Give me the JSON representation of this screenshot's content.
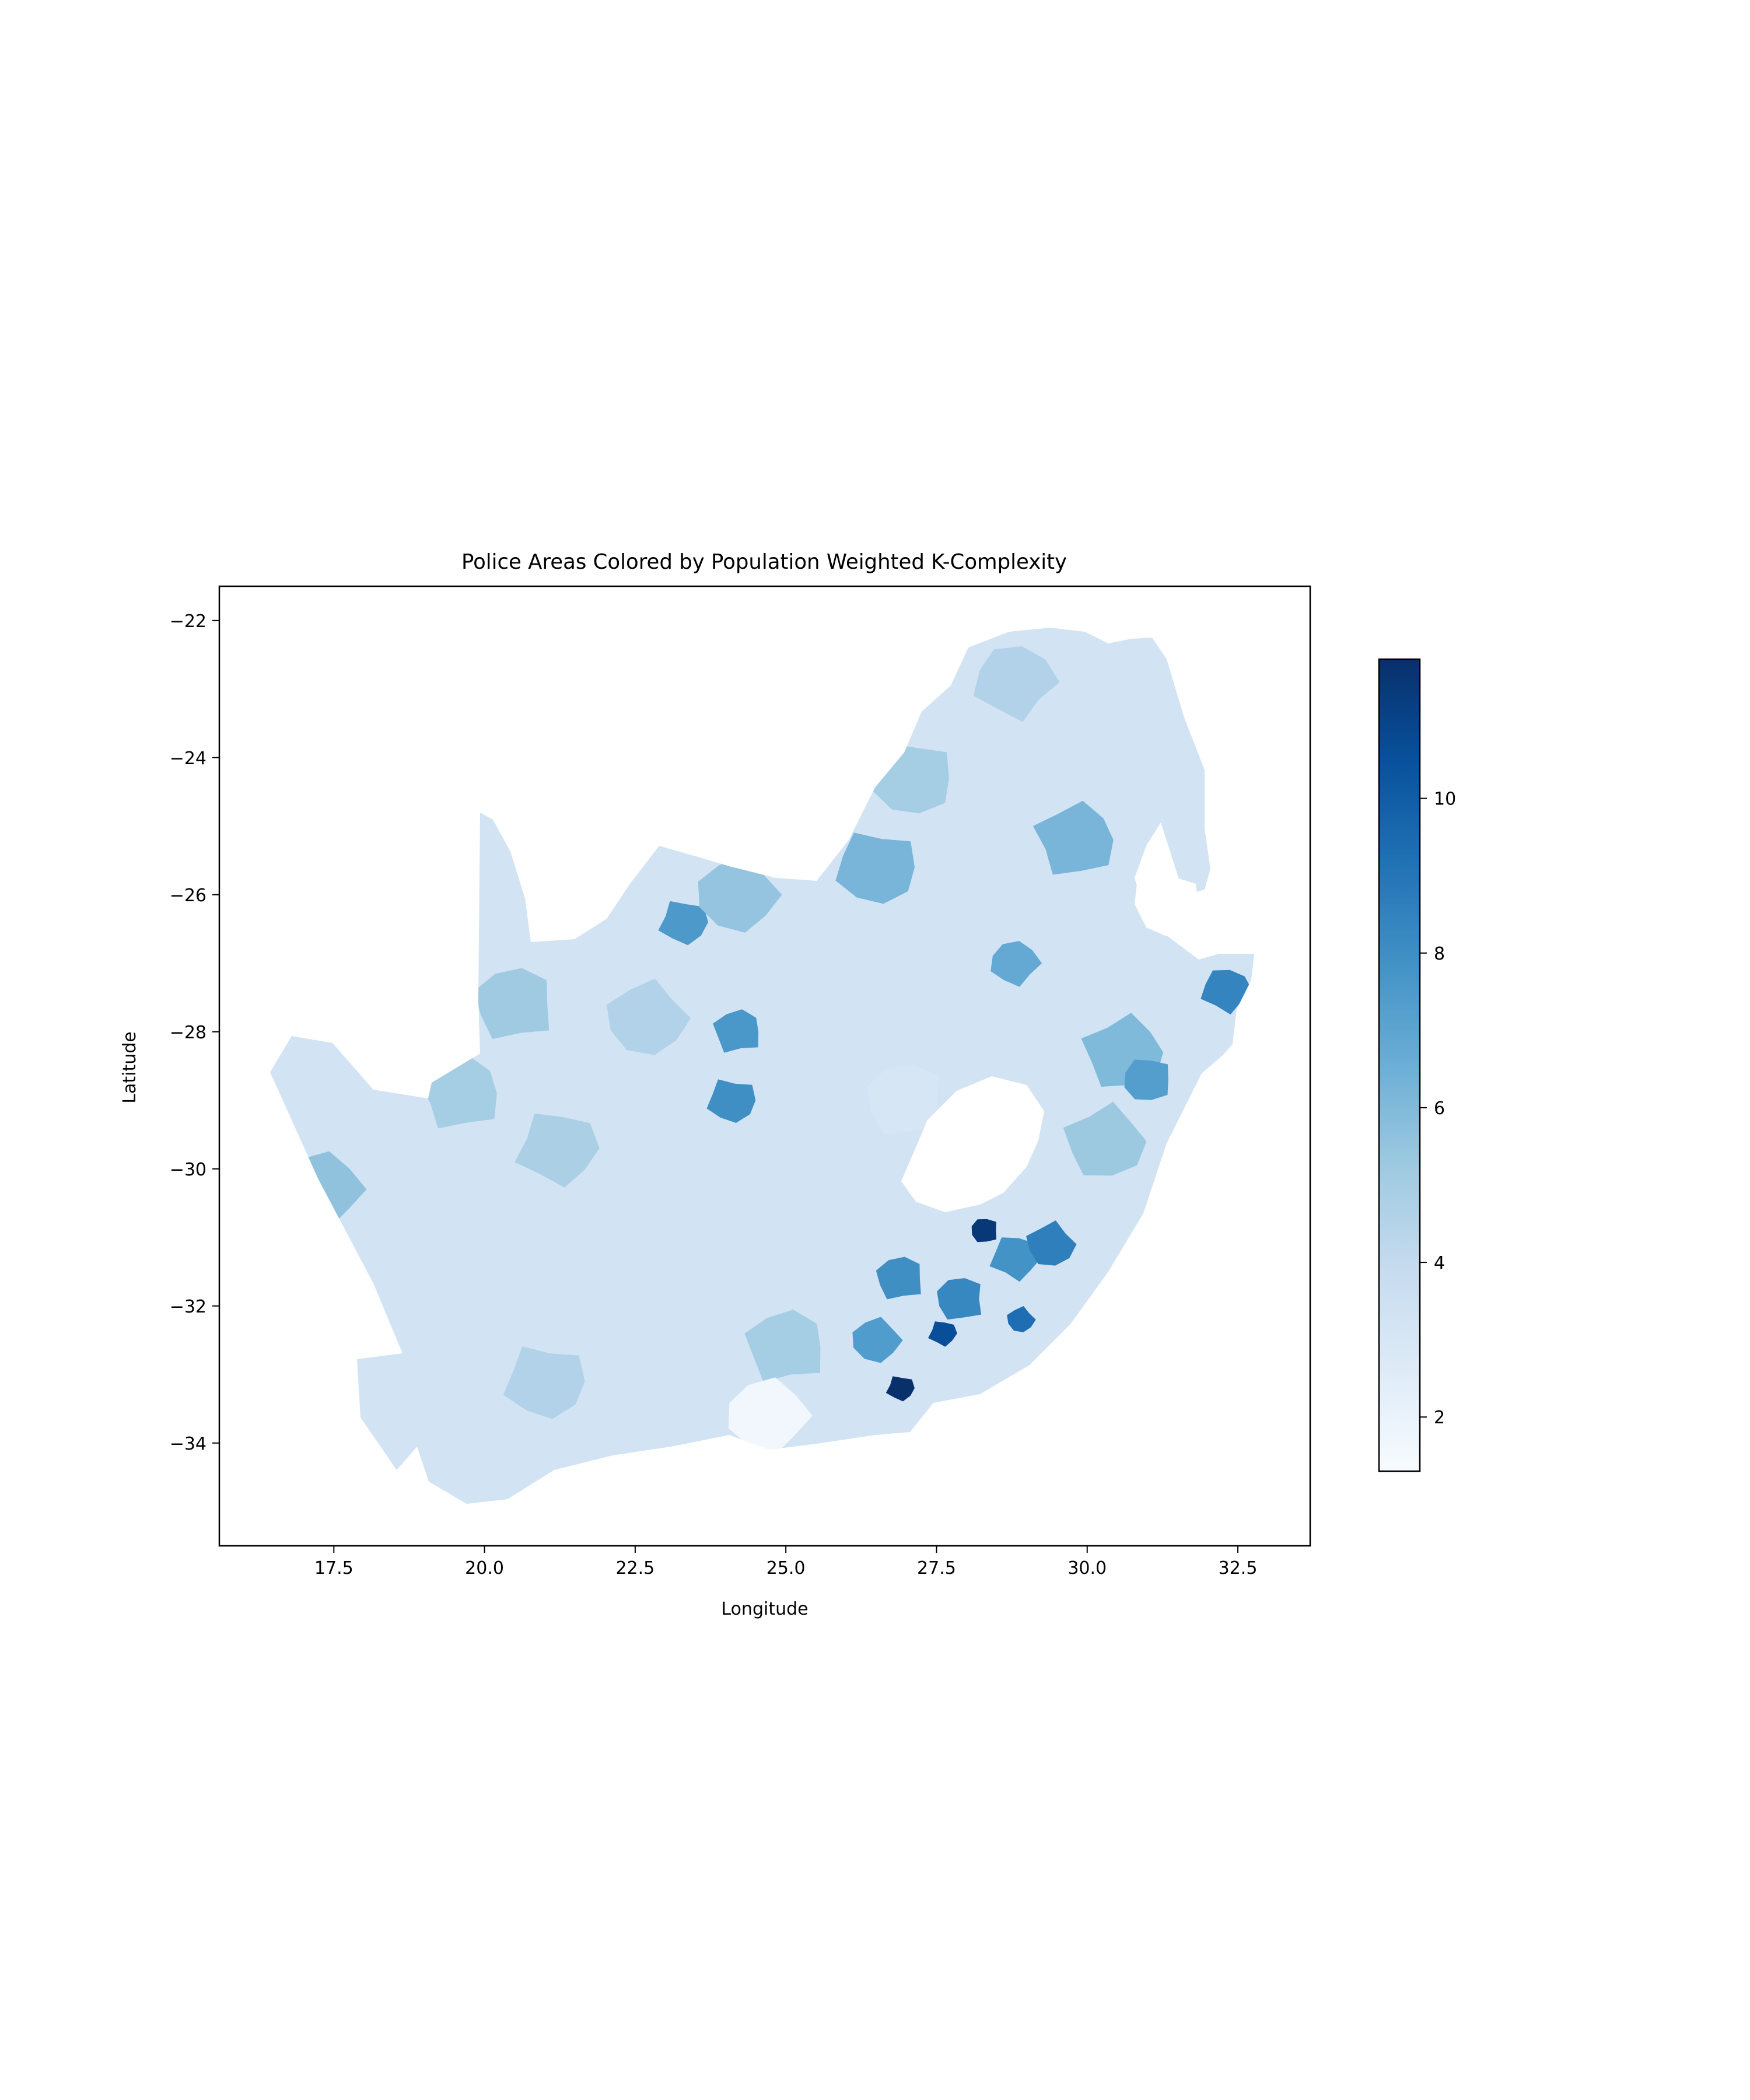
{
  "chart_data": {
    "type": "choropleth",
    "title": "Police Areas Colored by Population Weighted K-Complexity",
    "xlabel": "Longitude",
    "ylabel": "Latitude",
    "xlim": [
      15.6,
      33.7
    ],
    "ylim": [
      -35.5,
      -21.5
    ],
    "x_ticks": [
      17.5,
      20.0,
      22.5,
      25.0,
      27.5,
      30.0,
      32.5
    ],
    "x_tick_labels": [
      "17.5",
      "20.0",
      "22.5",
      "25.0",
      "27.5",
      "30.0",
      "32.5"
    ],
    "y_ticks": [
      -22,
      -24,
      -26,
      -28,
      -30,
      -32,
      -34
    ],
    "y_tick_labels": [
      "−22",
      "−24",
      "−26",
      "−28",
      "−30",
      "−32",
      "−34"
    ],
    "colorbar": {
      "colormap": "Blues",
      "range": [
        1.3,
        11.8
      ],
      "ticks": [
        2,
        4,
        6,
        8,
        10
      ],
      "tick_labels": [
        "2",
        "4",
        "6",
        "8",
        "10"
      ]
    },
    "grid": false,
    "regions": [
      {
        "lon": 27.0,
        "lat": -29.0,
        "value": 3.0
      },
      {
        "lon": 21.2,
        "lat": -29.7,
        "value": 4.8
      },
      {
        "lon": 22.7,
        "lat": -27.8,
        "value": 4.6
      },
      {
        "lon": 20.5,
        "lat": -27.6,
        "value": 5.2
      },
      {
        "lon": 23.3,
        "lat": -26.4,
        "value": 7.5
      },
      {
        "lon": 24.2,
        "lat": -26.0,
        "value": 5.5
      },
      {
        "lon": 24.2,
        "lat": -28.0,
        "value": 7.6
      },
      {
        "lon": 24.1,
        "lat": -29.0,
        "value": 8.0
      },
      {
        "lon": 17.3,
        "lat": -30.3,
        "value": 5.6
      },
      {
        "lon": 19.6,
        "lat": -28.9,
        "value": 5.0
      },
      {
        "lon": 26.5,
        "lat": -25.6,
        "value": 6.2
      },
      {
        "lon": 28.8,
        "lat": -27.0,
        "value": 6.8
      },
      {
        "lon": 29.8,
        "lat": -25.2,
        "value": 6.2
      },
      {
        "lon": 27.1,
        "lat": -24.3,
        "value": 5.0
      },
      {
        "lon": 28.8,
        "lat": -22.9,
        "value": 4.6
      },
      {
        "lon": 30.6,
        "lat": -28.3,
        "value": 6.0
      },
      {
        "lon": 31.0,
        "lat": -28.7,
        "value": 7.3
      },
      {
        "lon": 32.3,
        "lat": -27.4,
        "value": 8.4
      },
      {
        "lon": 30.3,
        "lat": -29.6,
        "value": 5.3
      },
      {
        "lon": 28.3,
        "lat": -30.9,
        "value": 11.5
      },
      {
        "lon": 28.8,
        "lat": -31.3,
        "value": 7.8
      },
      {
        "lon": 29.4,
        "lat": -31.1,
        "value": 8.6
      },
      {
        "lon": 27.9,
        "lat": -31.9,
        "value": 8.3
      },
      {
        "lon": 27.6,
        "lat": -32.4,
        "value": 10.6
      },
      {
        "lon": 28.9,
        "lat": -32.2,
        "value": 9.3
      },
      {
        "lon": 26.9,
        "lat": -31.6,
        "value": 8.0
      },
      {
        "lon": 26.9,
        "lat": -33.2,
        "value": 11.8
      },
      {
        "lon": 26.5,
        "lat": -32.5,
        "value": 7.4
      },
      {
        "lon": 25.0,
        "lat": -32.6,
        "value": 5.0
      },
      {
        "lon": 21.0,
        "lat": -33.1,
        "value": 4.6
      },
      {
        "lon": 24.7,
        "lat": -33.6,
        "value": 1.6
      }
    ]
  }
}
